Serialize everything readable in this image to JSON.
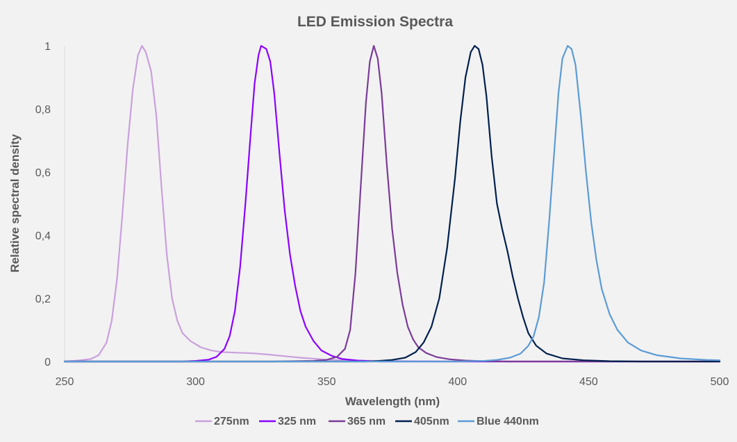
{
  "chart_data": {
    "type": "line",
    "title": "LED Emission Spectra",
    "xlabel": "Wavelength (nm)",
    "ylabel": "Relative spectral density",
    "xlim": [
      250,
      500
    ],
    "ylim": [
      0,
      1
    ],
    "x_ticks": [
      250,
      300,
      350,
      400,
      450,
      500
    ],
    "x_tick_labels": [
      "250",
      "300",
      "350",
      "400",
      "450",
      "500"
    ],
    "y_ticks": [
      0,
      0.2,
      0.4,
      0.6,
      0.8,
      1
    ],
    "y_tick_labels": [
      "0",
      "0,2",
      "0,4",
      "0,6",
      "0,8",
      "1"
    ],
    "grid": false,
    "legend_position": "bottom",
    "series": [
      {
        "name": "275nm",
        "color": "#c9a0dc",
        "points": [
          [
            250,
            0
          ],
          [
            255,
            0.003
          ],
          [
            260,
            0.008
          ],
          [
            263,
            0.02
          ],
          [
            266,
            0.06
          ],
          [
            268,
            0.13
          ],
          [
            270,
            0.26
          ],
          [
            272,
            0.46
          ],
          [
            274,
            0.68
          ],
          [
            276,
            0.86
          ],
          [
            278,
            0.97
          ],
          [
            279.5,
            1
          ],
          [
            281,
            0.98
          ],
          [
            283,
            0.92
          ],
          [
            285,
            0.78
          ],
          [
            287,
            0.55
          ],
          [
            289,
            0.34
          ],
          [
            291,
            0.2
          ],
          [
            293,
            0.13
          ],
          [
            295,
            0.09
          ],
          [
            298,
            0.065
          ],
          [
            302,
            0.045
          ],
          [
            306,
            0.035
          ],
          [
            310,
            0.03
          ],
          [
            316,
            0.028
          ],
          [
            322,
            0.026
          ],
          [
            328,
            0.022
          ],
          [
            335,
            0.016
          ],
          [
            340,
            0.012
          ],
          [
            350,
            0.006
          ],
          [
            360,
            0.003
          ],
          [
            380,
            0.001
          ],
          [
            400,
            0
          ],
          [
            500,
            0
          ]
        ]
      },
      {
        "name": "325 nm",
        "color": "#8b00ff",
        "points": [
          [
            250,
            0
          ],
          [
            295,
            0
          ],
          [
            300,
            0.002
          ],
          [
            305,
            0.006
          ],
          [
            308,
            0.015
          ],
          [
            311,
            0.04
          ],
          [
            313,
            0.08
          ],
          [
            315,
            0.16
          ],
          [
            317,
            0.3
          ],
          [
            319,
            0.5
          ],
          [
            321,
            0.72
          ],
          [
            322.5,
            0.88
          ],
          [
            324,
            0.97
          ],
          [
            325,
            1
          ],
          [
            327,
            0.99
          ],
          [
            328.5,
            0.95
          ],
          [
            330,
            0.85
          ],
          [
            332,
            0.66
          ],
          [
            334,
            0.48
          ],
          [
            336,
            0.34
          ],
          [
            338,
            0.24
          ],
          [
            340,
            0.16
          ],
          [
            342,
            0.11
          ],
          [
            345,
            0.065
          ],
          [
            348,
            0.035
          ],
          [
            352,
            0.018
          ],
          [
            356,
            0.008
          ],
          [
            362,
            0.003
          ],
          [
            370,
            0
          ],
          [
            500,
            0
          ]
        ]
      },
      {
        "name": "365 nm",
        "color": "#7a3b98",
        "points": [
          [
            250,
            0
          ],
          [
            330,
            0
          ],
          [
            345,
            0.002
          ],
          [
            350,
            0.005
          ],
          [
            354,
            0.015
          ],
          [
            357,
            0.04
          ],
          [
            359,
            0.1
          ],
          [
            361,
            0.28
          ],
          [
            363,
            0.55
          ],
          [
            365,
            0.82
          ],
          [
            366.5,
            0.95
          ],
          [
            368,
            1
          ],
          [
            369.5,
            0.96
          ],
          [
            371,
            0.85
          ],
          [
            373,
            0.62
          ],
          [
            375,
            0.42
          ],
          [
            377,
            0.28
          ],
          [
            379,
            0.18
          ],
          [
            381,
            0.11
          ],
          [
            383,
            0.07
          ],
          [
            385,
            0.045
          ],
          [
            388,
            0.027
          ],
          [
            392,
            0.014
          ],
          [
            397,
            0.007
          ],
          [
            403,
            0.003
          ],
          [
            410,
            0.001
          ],
          [
            420,
            0
          ],
          [
            500,
            0
          ]
        ]
      },
      {
        "name": "405nm",
        "color": "#001f4d",
        "points": [
          [
            250,
            0
          ],
          [
            365,
            0
          ],
          [
            370,
            0.002
          ],
          [
            375,
            0.005
          ],
          [
            380,
            0.012
          ],
          [
            384,
            0.03
          ],
          [
            387,
            0.06
          ],
          [
            390,
            0.11
          ],
          [
            393,
            0.2
          ],
          [
            396,
            0.36
          ],
          [
            399,
            0.58
          ],
          [
            401,
            0.76
          ],
          [
            403,
            0.9
          ],
          [
            405,
            0.98
          ],
          [
            406.5,
            1
          ],
          [
            408,
            0.99
          ],
          [
            409.5,
            0.94
          ],
          [
            411,
            0.84
          ],
          [
            413,
            0.65
          ],
          [
            415,
            0.5
          ],
          [
            417,
            0.42
          ],
          [
            419,
            0.35
          ],
          [
            421,
            0.27
          ],
          [
            423,
            0.2
          ],
          [
            425,
            0.14
          ],
          [
            427,
            0.09
          ],
          [
            430,
            0.05
          ],
          [
            434,
            0.025
          ],
          [
            440,
            0.01
          ],
          [
            448,
            0.004
          ],
          [
            458,
            0.001
          ],
          [
            470,
            0
          ],
          [
            500,
            0
          ]
        ]
      },
      {
        "name": "Blue 440nm",
        "color": "#5b9bd5",
        "points": [
          [
            250,
            0
          ],
          [
            400,
            0
          ],
          [
            410,
            0.002
          ],
          [
            415,
            0.005
          ],
          [
            420,
            0.012
          ],
          [
            424,
            0.025
          ],
          [
            427,
            0.05
          ],
          [
            429,
            0.08
          ],
          [
            431,
            0.14
          ],
          [
            433,
            0.25
          ],
          [
            435,
            0.45
          ],
          [
            437,
            0.68
          ],
          [
            438.5,
            0.85
          ],
          [
            440,
            0.96
          ],
          [
            442,
            1
          ],
          [
            443.5,
            0.99
          ],
          [
            445,
            0.94
          ],
          [
            447,
            0.78
          ],
          [
            449,
            0.6
          ],
          [
            451,
            0.44
          ],
          [
            453,
            0.32
          ],
          [
            455,
            0.23
          ],
          [
            458,
            0.15
          ],
          [
            461,
            0.1
          ],
          [
            465,
            0.06
          ],
          [
            470,
            0.035
          ],
          [
            476,
            0.02
          ],
          [
            485,
            0.01
          ],
          [
            495,
            0.005
          ],
          [
            500,
            0.004
          ]
        ]
      }
    ]
  }
}
